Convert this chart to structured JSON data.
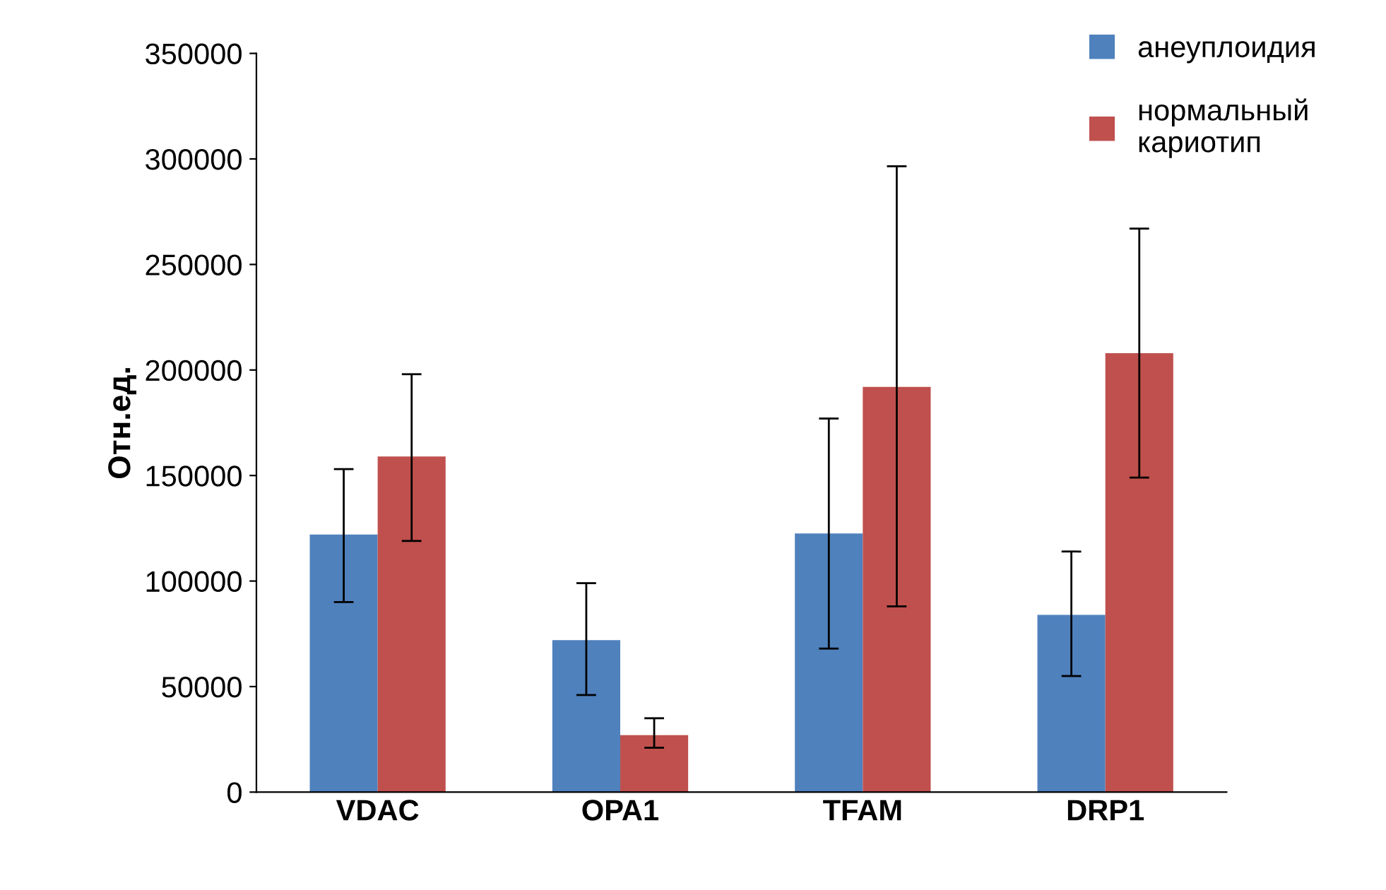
{
  "chart_data": {
    "type": "bar",
    "ylabel": "Отн.ед.",
    "categories": [
      "VDAC",
      "OPA1",
      "TFAM",
      "DRP1"
    ],
    "series": [
      {
        "name": "анеуплоидия",
        "color": "#4f81bd",
        "values": [
          122000,
          72000,
          122500,
          84000
        ],
        "errors": [
          [
            90000,
            153000
          ],
          [
            46000,
            99000
          ],
          [
            68000,
            177000
          ],
          [
            55000,
            114000
          ]
        ]
      },
      {
        "name": "нормальный\nкариотип",
        "color": "#c0504d",
        "values": [
          159000,
          27000,
          192000,
          208000
        ],
        "errors": [
          [
            119000,
            198000
          ],
          [
            21000,
            35000
          ],
          [
            88000,
            296500
          ],
          [
            149000,
            267000
          ]
        ]
      }
    ],
    "ylim": [
      0,
      350000
    ],
    "yticks": [
      0,
      50000,
      100000,
      150000,
      200000,
      250000,
      300000,
      350000
    ],
    "grid": false,
    "legend": "top right"
  }
}
